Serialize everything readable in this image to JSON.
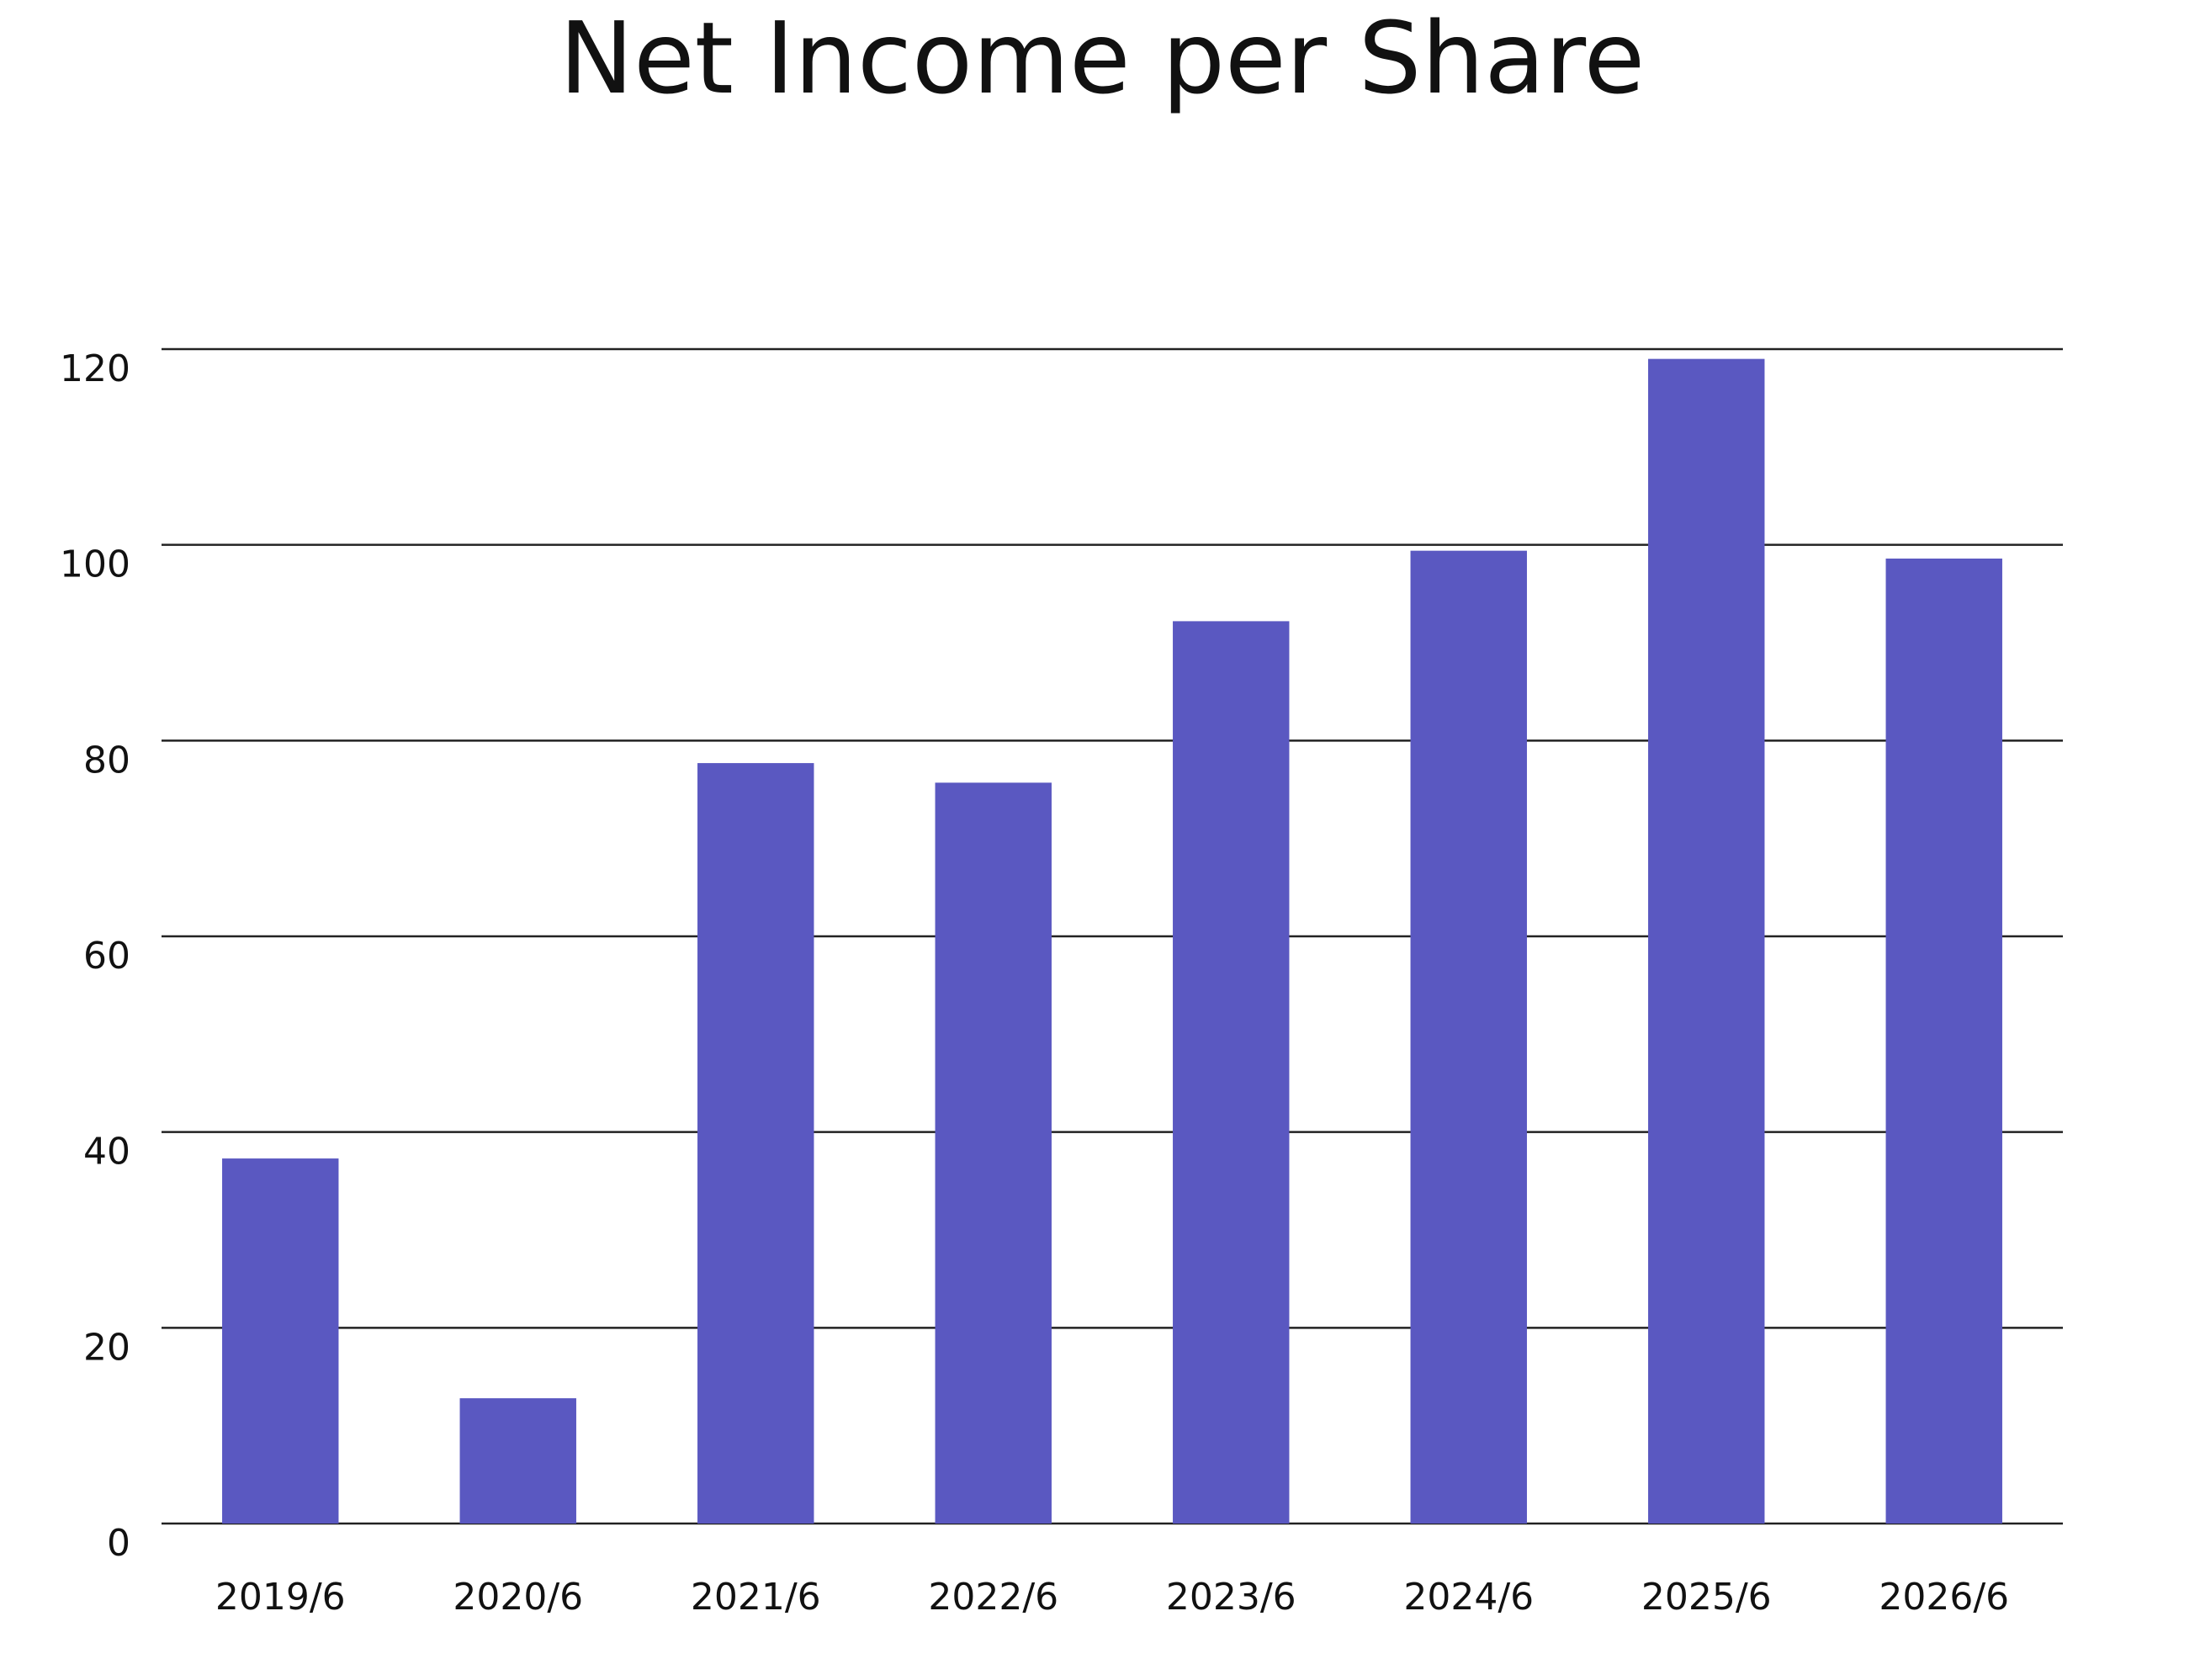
{
  "chart_data": {
    "type": "bar",
    "title": "Net Income per Share",
    "categories": [
      "2019/6",
      "2020/6",
      "2021/6",
      "2022/6",
      "2023/6",
      "2024/6",
      "2025/6",
      "2026/6"
    ],
    "values": [
      37.3,
      12.8,
      77.7,
      75.7,
      92.2,
      99.4,
      119.0,
      98.6
    ],
    "color": "#5a58c1",
    "ylim": [
      0,
      120
    ],
    "yticks": [
      0,
      20,
      40,
      60,
      80,
      100,
      120
    ],
    "grid": true
  }
}
